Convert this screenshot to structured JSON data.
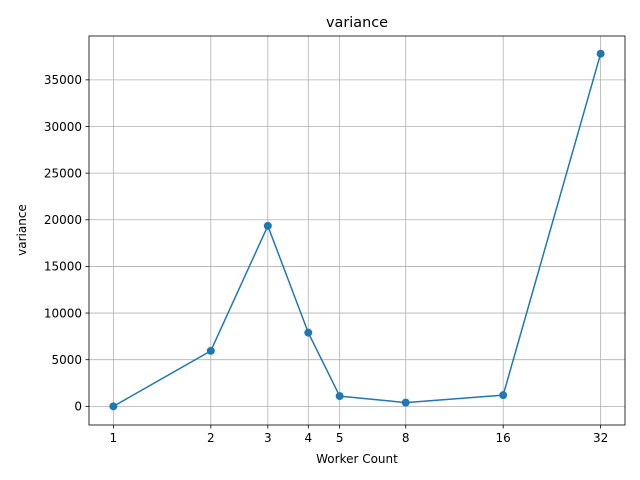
{
  "chart_data": {
    "type": "line",
    "title": "variance",
    "xlabel": "Worker Count",
    "ylabel": "variance",
    "x_scale": "log2",
    "x": [
      1,
      2,
      3,
      4,
      5,
      8,
      16,
      32
    ],
    "x_tick_labels": [
      "1",
      "2",
      "3",
      "4",
      "5",
      "8",
      "16",
      "32"
    ],
    "y_ticks": [
      0,
      5000,
      10000,
      15000,
      20000,
      25000,
      30000,
      35000
    ],
    "y_tick_labels": [
      "0",
      "5000",
      "10000",
      "15000",
      "20000",
      "25000",
      "30000",
      "35000"
    ],
    "ylim": [
      -2000,
      39700
    ],
    "grid": true,
    "series": [
      {
        "values": [
          0,
          5950,
          19350,
          7900,
          1100,
          400,
          1200,
          37800
        ],
        "color": "#1f77b4",
        "marker": "circle"
      }
    ]
  }
}
